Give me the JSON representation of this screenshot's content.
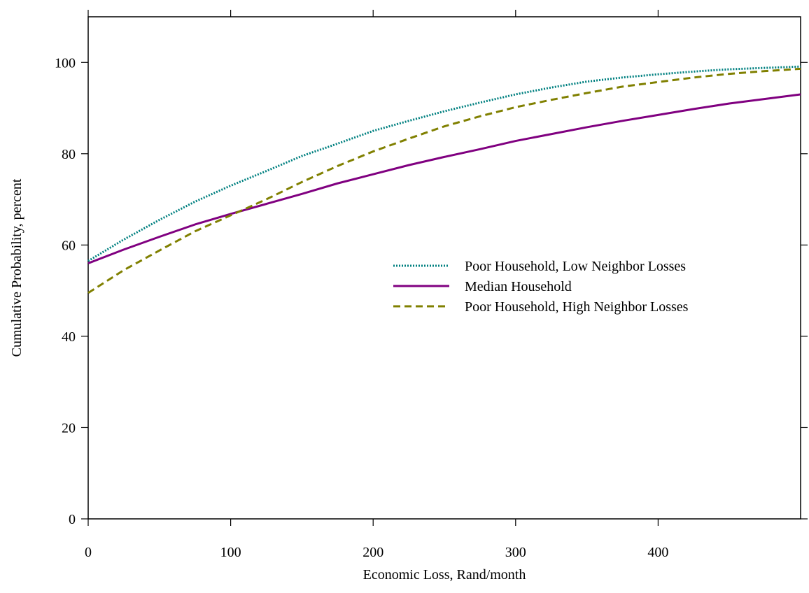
{
  "chart_data": {
    "type": "line",
    "title": "",
    "xlabel": "Economic Loss, Rand/month",
    "ylabel": "Cumulative Probability, percent",
    "xlim": [
      0,
      500
    ],
    "ylim": [
      0,
      110
    ],
    "xticks": [
      0,
      100,
      200,
      300,
      400
    ],
    "yticks": [
      0,
      20,
      40,
      60,
      80,
      100
    ],
    "grid": false,
    "legend_position": "center-right",
    "x": [
      0,
      25,
      50,
      75,
      100,
      125,
      150,
      175,
      200,
      225,
      250,
      275,
      300,
      325,
      350,
      375,
      400,
      425,
      450,
      475,
      500
    ],
    "series": [
      {
        "name": "Poor Household, Low Neighbor Losses",
        "color": "#008080",
        "style": "dotted",
        "values": [
          56.5,
          61.2,
          65.5,
          69.5,
          73.0,
          76.2,
          79.5,
          82.2,
          85.0,
          87.2,
          89.3,
          91.2,
          93.0,
          94.5,
          95.8,
          96.7,
          97.4,
          98.0,
          98.5,
          98.8,
          99.1
        ]
      },
      {
        "name": "Median Household",
        "color": "#800080",
        "style": "solid",
        "values": [
          56.0,
          59.0,
          61.8,
          64.5,
          66.8,
          69.0,
          71.2,
          73.5,
          75.5,
          77.5,
          79.3,
          81.0,
          82.8,
          84.3,
          85.8,
          87.2,
          88.5,
          89.8,
          91.0,
          92.0,
          93.0
        ]
      },
      {
        "name": "Poor Household, High Neighbor Losses",
        "color": "#808000",
        "style": "dashed",
        "values": [
          49.5,
          54.5,
          58.8,
          63.0,
          66.5,
          70.0,
          73.8,
          77.3,
          80.5,
          83.3,
          86.0,
          88.2,
          90.2,
          91.8,
          93.3,
          94.7,
          95.7,
          96.7,
          97.5,
          98.1,
          98.6
        ]
      }
    ]
  }
}
